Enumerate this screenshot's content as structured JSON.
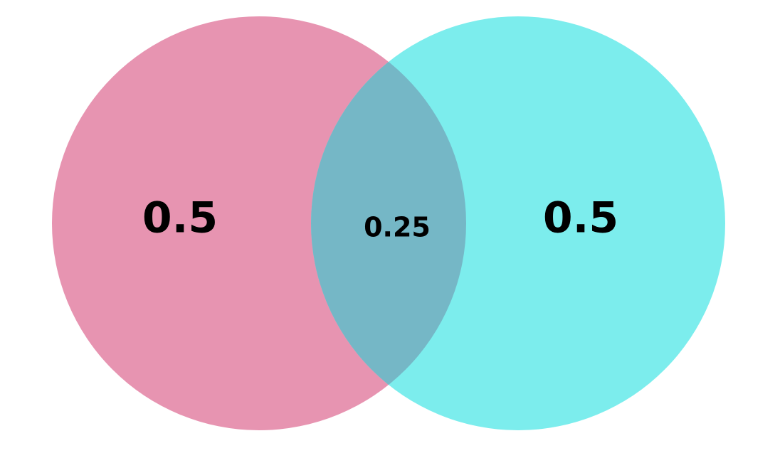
{
  "diagram": {
    "type": "venn",
    "sets": [
      {
        "color": "#e794b1",
        "only_value": "0.5"
      },
      {
        "color": "#7ceded",
        "only_value": "0.5"
      }
    ],
    "intersection": {
      "color": "#75b7c6",
      "value": "0.25"
    }
  }
}
